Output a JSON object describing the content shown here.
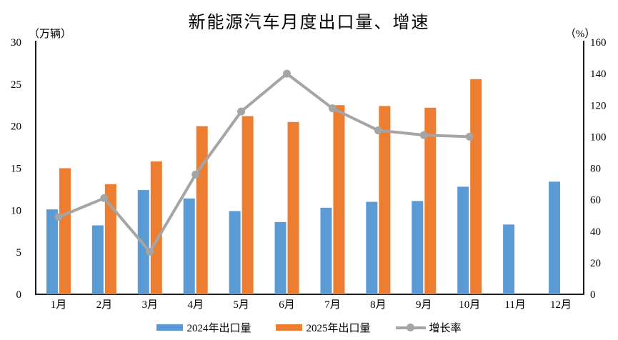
{
  "title": "新能源汽车月度出口量、增速",
  "chart_data": {
    "type": "combo-bar-line",
    "title": "新能源汽车月度出口量、增速",
    "categories": [
      "1月",
      "2月",
      "3月",
      "4月",
      "5月",
      "6月",
      "7月",
      "8月",
      "9月",
      "10月",
      "11月",
      "12月"
    ],
    "series": [
      {
        "name": "2024年出口量",
        "type": "bar",
        "axis": "left",
        "color": "#5B9BD5",
        "values": [
          10.1,
          8.2,
          12.4,
          11.4,
          9.9,
          8.6,
          10.3,
          11.0,
          11.1,
          12.8,
          8.3,
          13.4
        ]
      },
      {
        "name": "2025年出口量",
        "type": "bar",
        "axis": "left",
        "color": "#ED7D31",
        "values": [
          15.0,
          13.1,
          15.8,
          20.0,
          21.2,
          20.5,
          22.5,
          22.4,
          22.2,
          25.6,
          null,
          null
        ]
      },
      {
        "name": "增长率",
        "type": "line",
        "axis": "right",
        "color": "#A5A5A5",
        "values": [
          49,
          61,
          27,
          76,
          116,
          140,
          118,
          104,
          101,
          100,
          null,
          null
        ]
      }
    ],
    "left_axis": {
      "unit": "（万辆）",
      "min": 0,
      "max": 30,
      "step": 5,
      "tick_labels": [
        "0",
        "5",
        "10",
        "15",
        "20",
        "25",
        "30"
      ]
    },
    "right_axis": {
      "unit": "（%）",
      "min": 0,
      "max": 160,
      "step": 20,
      "tick_labels": [
        "0",
        "20",
        "40",
        "60",
        "80",
        "100",
        "120",
        "140",
        "160"
      ]
    },
    "grid": false,
    "legend_position": "bottom",
    "background": "#FFFFFF",
    "axis_color": "#000000"
  }
}
